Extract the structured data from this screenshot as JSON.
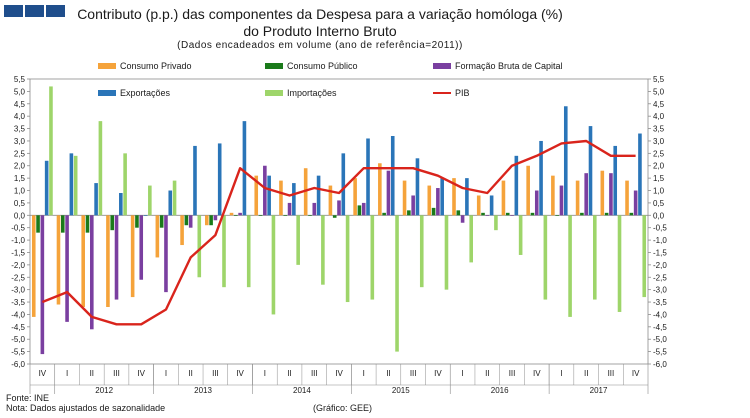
{
  "header": {
    "title_line1": "Contributo (p.p.) das componentes da Despesa para a variação homóloga (%)",
    "title_line2": "do Produto Interno Bruto",
    "subtitle": "(Dados encadeados em volume (ano de referência=2011))"
  },
  "footer": {
    "source": "Fonte: INE",
    "note": "Nota: Dados ajustados de sazonalidade",
    "credit": "(Gráfico: GEE)"
  },
  "colors": {
    "consumo_privado": "#f5a33b",
    "consumo_publico": "#1a7a1a",
    "fbcf": "#7a3fa0",
    "exportacoes": "#2a75b8",
    "importacoes": "#9ed56a",
    "pib": "#d9241c",
    "header_squares": "#1f4e8c"
  },
  "chart_data": {
    "type": "bar",
    "ylim": [
      -6.0,
      5.5
    ],
    "ytick_step": 0.5,
    "y_ticks": [
      "5,5",
      "5,0",
      "4,5",
      "4,0",
      "3,5",
      "3,0",
      "2,5",
      "2,0",
      "1,5",
      "1,0",
      "0,5",
      "0,0",
      "-0,5",
      "-1,0",
      "-1,5",
      "-2,0",
      "-2,5",
      "-3,0",
      "-3,5",
      "-4,0",
      "-4,5",
      "-5,0",
      "-5,5",
      "-6,0"
    ],
    "categories": [
      "IV",
      "I",
      "II",
      "III",
      "IV",
      "I",
      "II",
      "III",
      "IV",
      "I",
      "II",
      "III",
      "IV",
      "I",
      "II",
      "III",
      "IV",
      "I",
      "II",
      "III",
      "IV",
      "I",
      "II",
      "III",
      "IV"
    ],
    "years": [
      {
        "label": "2012",
        "start": 1,
        "end": 4
      },
      {
        "label": "2013",
        "start": 5,
        "end": 8
      },
      {
        "label": "2014",
        "start": 9,
        "end": 12
      },
      {
        "label": "2015",
        "start": 13,
        "end": 16
      },
      {
        "label": "2016",
        "start": 17,
        "end": 20
      },
      {
        "label": "2017",
        "start": 21,
        "end": 24
      }
    ],
    "series": [
      {
        "name": "Consumo Privado",
        "color_key": "consumo_privado",
        "kind": "bar",
        "values": [
          -4.1,
          -3.6,
          -3.7,
          -3.7,
          -3.3,
          -1.7,
          -1.2,
          -0.4,
          0.1,
          1.6,
          1.4,
          1.9,
          1.2,
          1.5,
          2.1,
          1.4,
          1.2,
          1.5,
          0.8,
          1.4,
          2.0,
          1.6,
          1.4,
          1.8,
          1.4
        ]
      },
      {
        "name": "Consumo Público",
        "color_key": "consumo_publico",
        "kind": "bar",
        "values": [
          -0.7,
          -0.7,
          -0.7,
          -0.6,
          -0.5,
          -0.5,
          -0.4,
          -0.4,
          0.0,
          0.0,
          0.0,
          0.0,
          -0.1,
          0.4,
          0.1,
          0.2,
          0.3,
          0.2,
          0.1,
          0.1,
          0.1,
          0.0,
          0.1,
          0.1,
          0.1
        ]
      },
      {
        "name": "Formação Bruta de Capital",
        "color_key": "fbcf",
        "kind": "bar",
        "values": [
          -5.6,
          -4.3,
          -4.6,
          -3.4,
          -2.6,
          -3.1,
          -0.5,
          -0.2,
          0.1,
          2.0,
          0.5,
          0.5,
          0.6,
          0.5,
          1.8,
          0.8,
          1.1,
          -0.3,
          0.0,
          0.0,
          1.0,
          1.2,
          1.7,
          1.7,
          1.0
        ]
      },
      {
        "name": "Exportações",
        "color_key": "exportacoes",
        "kind": "bar",
        "values": [
          2.2,
          2.5,
          1.3,
          0.9,
          0.0,
          1.0,
          2.8,
          2.9,
          3.8,
          1.6,
          1.3,
          1.6,
          2.5,
          3.1,
          3.2,
          2.3,
          1.5,
          1.5,
          0.8,
          2.4,
          3.0,
          4.4,
          3.6,
          2.8,
          3.3
        ]
      },
      {
        "name": "Importações",
        "color_key": "importacoes",
        "kind": "bar",
        "values": [
          5.2,
          2.4,
          3.8,
          2.5,
          1.2,
          1.4,
          -2.5,
          -2.9,
          -2.9,
          -4.0,
          -2.0,
          -2.8,
          -3.5,
          -3.4,
          -5.5,
          -2.9,
          -3.0,
          -1.9,
          -0.6,
          -1.6,
          -3.4,
          -4.1,
          -3.4,
          -3.9,
          -3.3
        ]
      },
      {
        "name": "PIB",
        "color_key": "pib",
        "kind": "line",
        "values": [
          -3.5,
          -3.1,
          -4.1,
          -4.4,
          -4.4,
          -3.8,
          -1.7,
          -0.8,
          1.9,
          1.1,
          0.8,
          1.1,
          0.9,
          1.9,
          1.9,
          1.9,
          1.6,
          1.1,
          0.9,
          2.0,
          2.4,
          2.9,
          3.0,
          2.4,
          2.4
        ]
      }
    ],
    "legend": [
      {
        "name": "Consumo Privado",
        "color_key": "consumo_privado"
      },
      {
        "name": "Consumo Público",
        "color_key": "consumo_publico"
      },
      {
        "name": "Formação Bruta de Capital",
        "color_key": "fbcf"
      },
      {
        "name": "Exportações",
        "color_key": "exportacoes"
      },
      {
        "name": "Importações",
        "color_key": "importacoes"
      },
      {
        "name": "PIB",
        "color_key": "pib"
      }
    ]
  }
}
